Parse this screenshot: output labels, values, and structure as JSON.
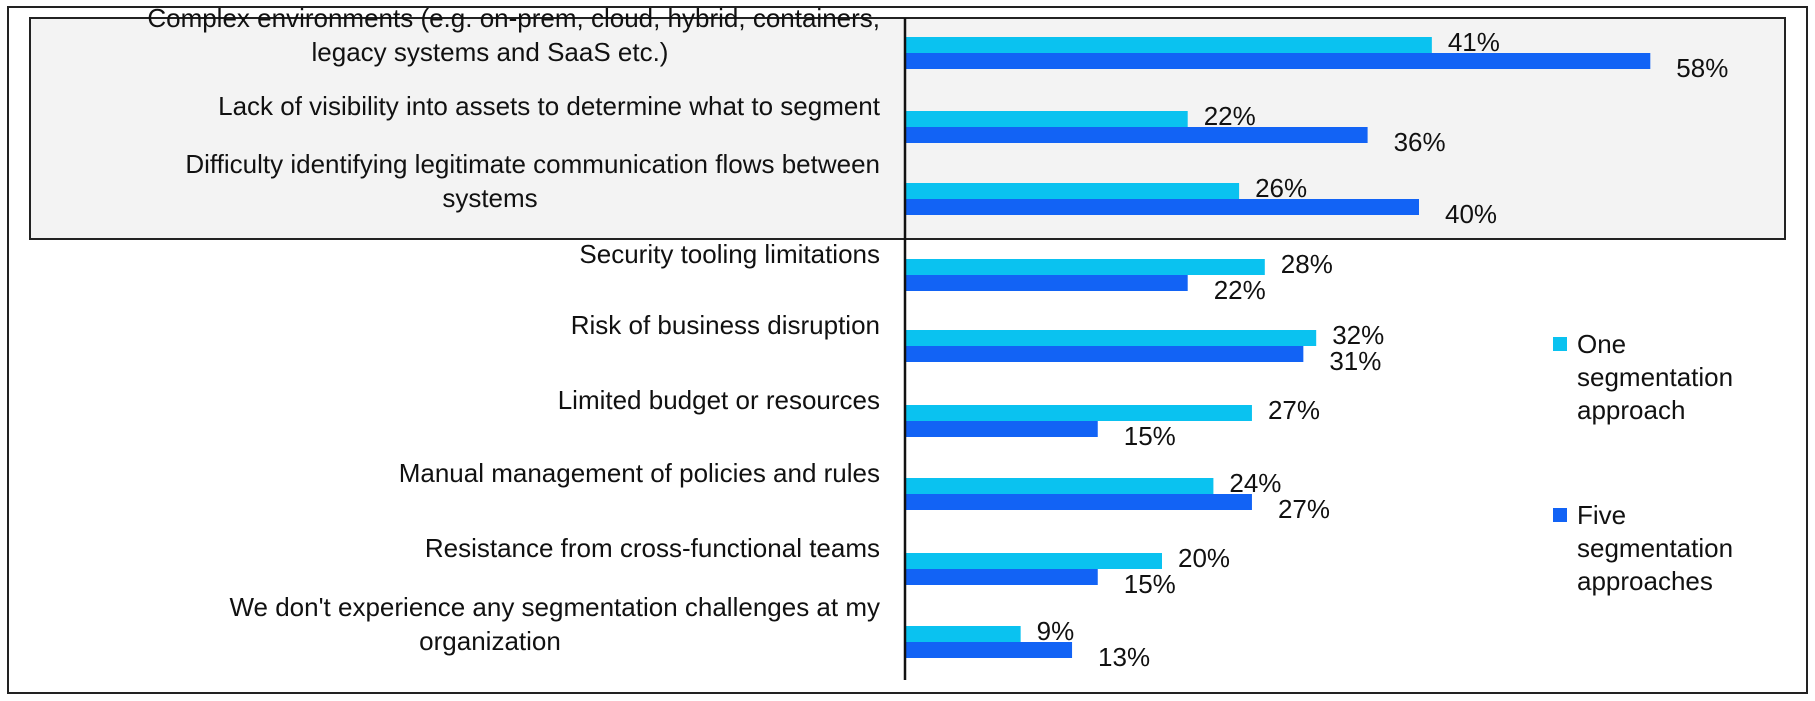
{
  "chart_data": {
    "type": "bar",
    "orientation": "horizontal",
    "title": "",
    "xlabel": "",
    "ylabel": "",
    "categories": [
      [
        "Complex environments (e.g. on-prem, cloud, hybrid, containers,",
        "legacy systems and SaaS etc.)"
      ],
      [
        "Lack of visibility into assets to determine what to segment"
      ],
      [
        "Difficulty identifying legitimate communication flows between",
        "systems"
      ],
      [
        "Security tooling limitations"
      ],
      [
        "Risk of business disruption"
      ],
      [
        "Limited budget or resources"
      ],
      [
        "Manual management of policies and rules"
      ],
      [
        "Resistance from cross-functional teams"
      ],
      [
        "We don't experience any segmentation challenges at my",
        "organization"
      ]
    ],
    "series": [
      {
        "name": "One segmentation approach",
        "legend_lines": [
          "One",
          "segmentation",
          "approach"
        ],
        "color": "#0ac2f0",
        "values": [
          41,
          22,
          26,
          28,
          32,
          27,
          24,
          20,
          9
        ],
        "labels": [
          "41%",
          "22%",
          "26%",
          "28%",
          "32%",
          "27%",
          "24%",
          "20%",
          "9%"
        ]
      },
      {
        "name": "Five segmentation approaches",
        "legend_lines": [
          "Five",
          "segmentation",
          "approaches"
        ],
        "color": "#1263f5",
        "values": [
          58,
          36,
          40,
          22,
          31,
          15,
          27,
          15,
          13
        ],
        "labels": [
          "58%",
          "36%",
          "40%",
          "22%",
          "31%",
          "15%",
          "27%",
          "15%",
          "13%"
        ]
      }
    ],
    "highlighted_categories": [
      0,
      1,
      2
    ],
    "highlight_fill": "#f3f3f3",
    "legend_position": "right",
    "grid": false
  }
}
